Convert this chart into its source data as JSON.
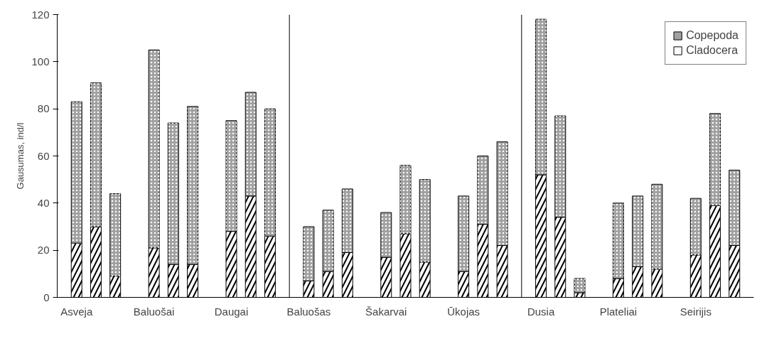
{
  "chart_data": {
    "type": "bar",
    "stacked": true,
    "ylabel": "Gausumas, ind/l",
    "categories": [
      "Asveja",
      null,
      null,
      "Baluošai",
      null,
      null,
      "Daugai",
      null,
      null,
      "Baluošas",
      null,
      null,
      "Šakarvai",
      null,
      null,
      "Ūkojas",
      null,
      null,
      "Dusia",
      null,
      null,
      "Plateliai",
      null,
      null,
      "Seirijis",
      null,
      null
    ],
    "series": [
      {
        "name": "Cladocera",
        "color": "#ffffff",
        "values": [
          23,
          30,
          9,
          21,
          14,
          14,
          28,
          43,
          26,
          7,
          11,
          19,
          17,
          27,
          15,
          11,
          31,
          22,
          52,
          34,
          2,
          8,
          13,
          12,
          18,
          39,
          22
        ]
      },
      {
        "name": "Copepoda",
        "color": "#a0a0a0",
        "values": [
          60,
          61,
          35,
          84,
          60,
          67,
          47,
          44,
          54,
          23,
          26,
          27,
          19,
          29,
          35,
          32,
          29,
          44,
          66,
          43,
          6,
          32,
          30,
          36,
          24,
          39,
          32
        ]
      }
    ],
    "ylim": [
      0,
      120
    ],
    "yticks": [
      0,
      20,
      40,
      60,
      80,
      100,
      120
    ],
    "grid": false,
    "legend": "top right"
  }
}
